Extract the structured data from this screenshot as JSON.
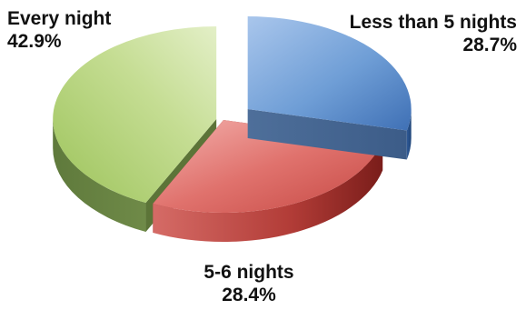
{
  "chart_data": {
    "type": "pie",
    "style": "3d-exploded",
    "title": "",
    "slices": [
      {
        "label": "Less than 5 nights",
        "value": 28.7,
        "display": "28.7%",
        "color": "#6f9ed6"
      },
      {
        "label": "5-6 nights",
        "value": 28.4,
        "display": "28.4%",
        "color": "#e0726d"
      },
      {
        "label": "Every night",
        "value": 42.9,
        "display": "42.9%",
        "color": "#b7d47a"
      }
    ]
  }
}
